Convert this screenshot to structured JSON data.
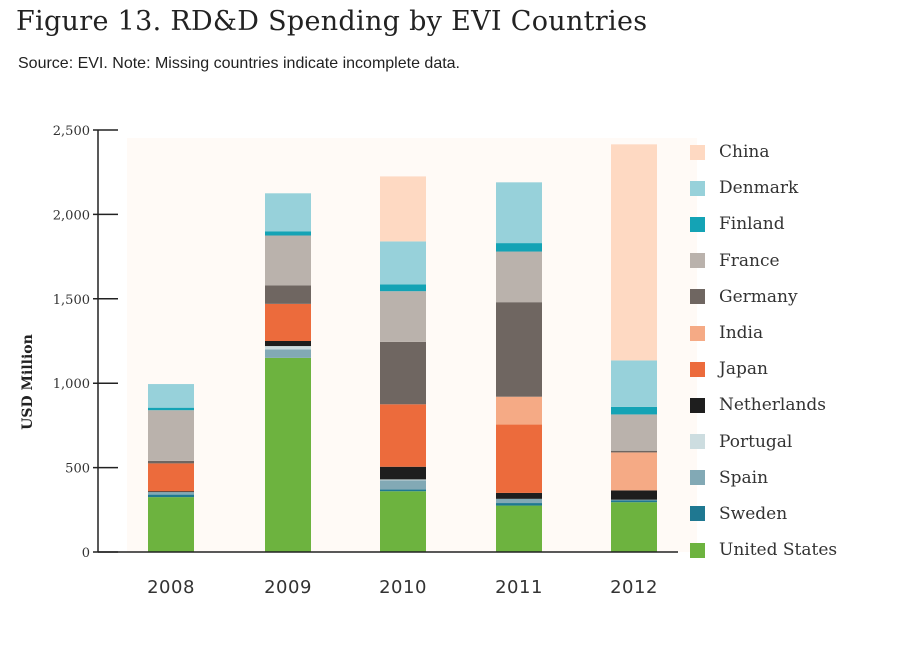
{
  "title": "Figure 13. RD&D Spending by EVI Countries",
  "subtitle": "Source: EVI. Note: Missing countries indicate incomplete data.",
  "chart_data": {
    "type": "bar",
    "stacked": true,
    "title": "Figure 13. RD&D Spending by EVI Countries",
    "xlabel": "",
    "ylabel": "USD Million",
    "ylim": [
      0,
      2500
    ],
    "yticks": [
      0,
      500,
      1000,
      1500,
      2000,
      2500
    ],
    "ytick_labels": [
      "0",
      "500",
      "1,000",
      "1,500",
      "2,000",
      "2,500"
    ],
    "categories": [
      "2008",
      "2009",
      "2010",
      "2011",
      "2012"
    ],
    "series": [
      {
        "name": "United States",
        "color": "#6db33f",
        "values": [
          325,
          1150,
          360,
          275,
          295
        ]
      },
      {
        "name": "Sweden",
        "color": "#1f7891",
        "values": [
          15,
          0,
          10,
          15,
          10
        ]
      },
      {
        "name": "Spain",
        "color": "#82a9b5",
        "values": [
          15,
          50,
          55,
          25,
          5
        ]
      },
      {
        "name": "Portugal",
        "color": "#cddde0",
        "values": [
          0,
          20,
          5,
          0,
          0
        ]
      },
      {
        "name": "Netherlands",
        "color": "#1e1e1e",
        "values": [
          5,
          30,
          75,
          35,
          55
        ]
      },
      {
        "name": "Japan",
        "color": "#ec6b3c",
        "values": [
          165,
          220,
          370,
          405,
          0
        ]
      },
      {
        "name": "India",
        "color": "#f5aa85",
        "values": [
          0,
          0,
          0,
          165,
          225
        ]
      },
      {
        "name": "Germany",
        "color": "#6f6661",
        "values": [
          15,
          110,
          370,
          560,
          10
        ]
      },
      {
        "name": "France",
        "color": "#bab2ac",
        "values": [
          300,
          295,
          300,
          300,
          215
        ]
      },
      {
        "name": "Finland",
        "color": "#14a3b5",
        "values": [
          15,
          25,
          40,
          50,
          45
        ]
      },
      {
        "name": "Denmark",
        "color": "#97d1da",
        "values": [
          140,
          225,
          255,
          360,
          275
        ]
      },
      {
        "name": "China",
        "color": "#fed9c2",
        "values": [
          0,
          0,
          385,
          0,
          1280
        ]
      }
    ],
    "legend": [
      "China",
      "Denmark",
      "Finland",
      "France",
      "Germany",
      "India",
      "Japan",
      "Netherlands",
      "Portugal",
      "Spain",
      "Sweden",
      "United States"
    ],
    "legend_position": "right",
    "plot_background": "#fffaf6",
    "grid": false
  }
}
